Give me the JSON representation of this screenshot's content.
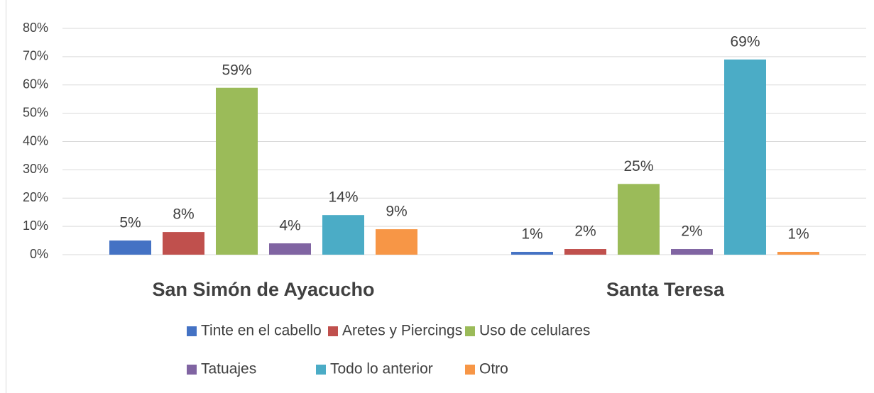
{
  "chart_data": {
    "type": "bar",
    "categories": [
      "San Simón de Ayacucho",
      "Santa Teresa"
    ],
    "series": [
      {
        "name": "Tinte en el cabello",
        "color": "#4472c4",
        "values": [
          5,
          1
        ],
        "value_labels": [
          "5%",
          "1%"
        ]
      },
      {
        "name": "Aretes y Piercings",
        "color": "#c0504d",
        "values": [
          8,
          2
        ],
        "value_labels": [
          "8%",
          "2%"
        ]
      },
      {
        "name": "Uso de celulares",
        "color": "#9bbb59",
        "values": [
          59,
          25
        ],
        "value_labels": [
          "59%",
          "25%"
        ]
      },
      {
        "name": "Tatuajes",
        "color": "#8064a2",
        "values": [
          4,
          2
        ],
        "value_labels": [
          "4%",
          "2%"
        ]
      },
      {
        "name": "Todo lo anterior",
        "color": "#4bacc6",
        "values": [
          14,
          69
        ],
        "value_labels": [
          "14%",
          "69%"
        ]
      },
      {
        "name": "Otro",
        "color": "#f79646",
        "values": [
          9,
          1
        ],
        "value_labels": [
          "9%",
          "1%"
        ]
      }
    ],
    "ylim": [
      0,
      80
    ],
    "yticks": [
      {
        "value": 0,
        "label": "0%"
      },
      {
        "value": 10,
        "label": "10%"
      },
      {
        "value": 20,
        "label": "20%"
      },
      {
        "value": 30,
        "label": "30%"
      },
      {
        "value": 40,
        "label": "40%"
      },
      {
        "value": 50,
        "label": "50%"
      },
      {
        "value": 60,
        "label": "60%"
      },
      {
        "value": 70,
        "label": "70%"
      },
      {
        "value": 80,
        "label": "80%"
      }
    ],
    "grid": true,
    "legend": "bottom"
  }
}
